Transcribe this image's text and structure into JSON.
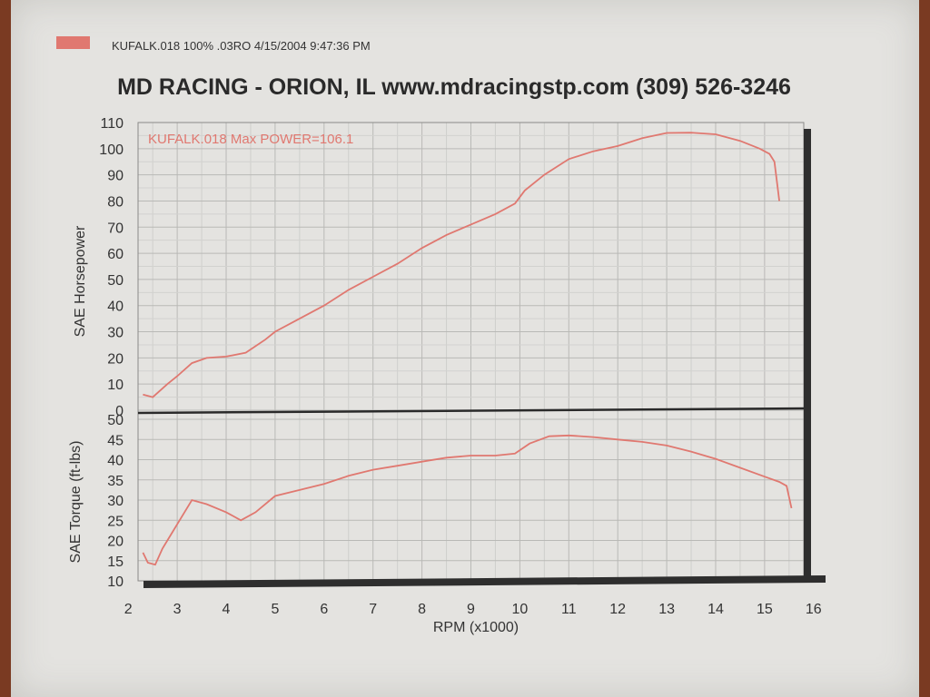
{
  "legend": {
    "run_info": "KUFALK.018   100% .03RO  4/15/2004 9:47:36 PM",
    "color": "#e07870"
  },
  "header": {
    "title": "MD RACING - ORION, IL www.mdracingstp.com (309) 526-3246"
  },
  "chart_data": [
    {
      "type": "line",
      "title": "",
      "xlabel": "RPM (x1000)",
      "ylabel": "SAE Horsepower",
      "xlim": [
        2.2,
        15.8
      ],
      "ylim": [
        0,
        110
      ],
      "y_ticks": [
        0,
        10,
        20,
        30,
        40,
        50,
        60,
        70,
        80,
        90,
        100,
        110
      ],
      "grid": true,
      "annotation": "KUFALK.018  Max POWER=106.1",
      "series": [
        {
          "color": "#e07870",
          "x": [
            2.3,
            2.5,
            2.8,
            3.0,
            3.3,
            3.6,
            4.0,
            4.4,
            4.8,
            5.0,
            5.5,
            6.0,
            6.5,
            7.0,
            7.5,
            8.0,
            8.5,
            9.0,
            9.5,
            9.9,
            10.1,
            10.5,
            11.0,
            11.5,
            12.0,
            12.5,
            13.0,
            13.5,
            14.0,
            14.5,
            14.9,
            15.1,
            15.2,
            15.3
          ],
          "y": [
            6,
            5,
            10,
            13,
            18,
            20,
            20.5,
            22,
            27,
            30,
            35,
            40,
            46,
            51,
            56,
            62,
            67,
            71,
            75,
            79,
            84,
            90,
            96,
            99,
            101,
            104,
            106,
            106.1,
            105.5,
            103,
            100,
            98,
            95,
            80
          ]
        }
      ]
    },
    {
      "type": "line",
      "title": "",
      "xlabel": "RPM (x1000)",
      "ylabel": "SAE Torque (ft-lbs)",
      "xlim": [
        2.2,
        15.8
      ],
      "ylim": [
        10,
        50
      ],
      "y_ticks": [
        10,
        15,
        20,
        25,
        30,
        35,
        40,
        45,
        50
      ],
      "x_ticks": [
        2,
        3,
        4,
        5,
        6,
        7,
        8,
        9,
        10,
        11,
        12,
        13,
        14,
        15,
        16
      ],
      "grid": true,
      "series": [
        {
          "color": "#e07870",
          "x": [
            2.3,
            2.4,
            2.55,
            2.7,
            2.9,
            3.1,
            3.3,
            3.6,
            4.0,
            4.3,
            4.6,
            5.0,
            5.5,
            6.0,
            6.5,
            7.0,
            7.5,
            8.0,
            8.5,
            9.0,
            9.5,
            9.9,
            10.2,
            10.6,
            11.0,
            11.5,
            12.0,
            12.5,
            13.0,
            13.5,
            14.0,
            14.5,
            15.0,
            15.3,
            15.45,
            15.55
          ],
          "y": [
            17,
            14.5,
            14,
            18,
            22,
            26,
            30,
            29,
            27,
            25,
            27,
            31,
            32.5,
            34,
            36,
            37.5,
            38.5,
            39.5,
            40.5,
            41,
            41,
            41.5,
            44,
            45.8,
            46,
            45.6,
            45,
            44.4,
            43.5,
            42,
            40.2,
            38,
            35.8,
            34.5,
            33.5,
            28
          ]
        }
      ]
    }
  ]
}
